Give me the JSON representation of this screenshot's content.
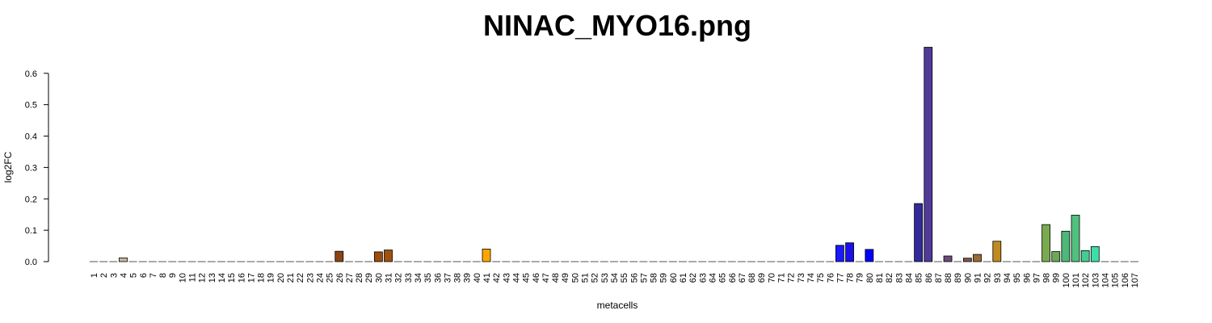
{
  "chart_data": {
    "type": "bar",
    "title": "NINAC_MYO16.png",
    "xlabel": "metacells",
    "ylabel": "log2FC",
    "ylim": [
      0,
      0.68
    ],
    "yticks": [
      "0.0",
      "0.1",
      "0.2",
      "0.3",
      "0.4",
      "0.5",
      "0.6"
    ],
    "grid": false,
    "categories": [
      "1",
      "2",
      "3",
      "4",
      "5",
      "6",
      "7",
      "8",
      "9",
      "10",
      "11",
      "12",
      "13",
      "14",
      "15",
      "16",
      "17",
      "18",
      "19",
      "20",
      "21",
      "22",
      "23",
      "24",
      "25",
      "26",
      "27",
      "28",
      "29",
      "30",
      "31",
      "32",
      "33",
      "34",
      "35",
      "36",
      "37",
      "38",
      "39",
      "40",
      "41",
      "42",
      "43",
      "44",
      "45",
      "46",
      "47",
      "48",
      "49",
      "50",
      "51",
      "52",
      "53",
      "54",
      "55",
      "56",
      "57",
      "58",
      "59",
      "60",
      "61",
      "62",
      "63",
      "64",
      "65",
      "66",
      "67",
      "68",
      "69",
      "70",
      "71",
      "72",
      "73",
      "74",
      "75",
      "76",
      "77",
      "78",
      "79",
      "80",
      "81",
      "82",
      "83",
      "84",
      "85",
      "86",
      "87",
      "88",
      "89",
      "90",
      "91",
      "92",
      "93",
      "94",
      "95",
      "96",
      "97",
      "98",
      "99",
      "100",
      "101",
      "102",
      "103",
      "104",
      "105",
      "106",
      "107"
    ],
    "values": [
      0,
      0,
      0,
      0.012,
      0,
      0,
      0,
      0,
      0,
      0,
      0,
      0,
      0,
      0,
      0,
      0,
      0,
      0,
      0,
      0,
      0,
      0,
      0,
      0,
      0,
      0.033,
      0,
      0,
      0,
      0.031,
      0.037,
      0,
      0,
      0,
      0,
      0,
      0,
      0,
      0,
      0,
      0.04,
      0,
      0,
      0,
      0,
      0,
      0,
      0,
      0,
      0,
      0,
      0,
      0,
      0,
      0,
      0,
      0,
      0,
      0,
      0,
      0,
      0,
      0,
      0,
      0,
      0,
      0,
      0,
      0,
      0,
      0,
      0,
      0,
      0,
      0,
      0,
      0.052,
      0.06,
      0,
      0.039,
      0,
      0,
      0,
      0,
      0.185,
      0.683,
      0,
      0.018,
      0,
      0.011,
      0.023,
      0,
      0.065,
      0,
      0,
      0,
      0,
      0.118,
      0.032,
      0.097,
      0.148,
      0.035,
      0.048,
      0,
      0,
      0,
      0
    ],
    "colors": [
      "#d3d3d3",
      "#d3d3d3",
      "#d3d3d3",
      "#c8b89a",
      "#d3d3d3",
      "#d3d3d3",
      "#d3d3d3",
      "#d3d3d3",
      "#d3d3d3",
      "#d3d3d3",
      "#d3d3d3",
      "#d3d3d3",
      "#d3d3d3",
      "#d3d3d3",
      "#d3d3d3",
      "#d3d3d3",
      "#d3d3d3",
      "#d3d3d3",
      "#d3d3d3",
      "#d3d3d3",
      "#d3d3d3",
      "#d3d3d3",
      "#d3d3d3",
      "#d3d3d3",
      "#d3d3d3",
      "#8b4513",
      "#d3d3d3",
      "#d3d3d3",
      "#d3d3d3",
      "#9c4e0c",
      "#a0520d",
      "#d3d3d3",
      "#d3d3d3",
      "#d3d3d3",
      "#d3d3d3",
      "#d3d3d3",
      "#d3d3d3",
      "#d3d3d3",
      "#d3d3d3",
      "#d3d3d3",
      "#ffa500",
      "#d3d3d3",
      "#d3d3d3",
      "#d3d3d3",
      "#d3d3d3",
      "#d3d3d3",
      "#d3d3d3",
      "#d3d3d3",
      "#d3d3d3",
      "#d3d3d3",
      "#d3d3d3",
      "#d3d3d3",
      "#d3d3d3",
      "#d3d3d3",
      "#d3d3d3",
      "#d3d3d3",
      "#d3d3d3",
      "#d3d3d3",
      "#d3d3d3",
      "#d3d3d3",
      "#d3d3d3",
      "#d3d3d3",
      "#d3d3d3",
      "#d3d3d3",
      "#d3d3d3",
      "#d3d3d3",
      "#d3d3d3",
      "#d3d3d3",
      "#d3d3d3",
      "#d3d3d3",
      "#d3d3d3",
      "#d3d3d3",
      "#d3d3d3",
      "#d3d3d3",
      "#d3d3d3",
      "#d3d3d3",
      "#1a1aff",
      "#1c10e8",
      "#d3d3d3",
      "#0000ff",
      "#d3d3d3",
      "#d3d3d3",
      "#d3d3d3",
      "#d3d3d3",
      "#332a9a",
      "#4f3b96",
      "#d3d3d3",
      "#6a4c7a",
      "#d3d3d3",
      "#7d5a4a",
      "#9a6a33",
      "#d3d3d3",
      "#c08a20",
      "#d3d3d3",
      "#d3d3d3",
      "#d3d3d3",
      "#d3d3d3",
      "#7aaa50",
      "#6aa858",
      "#4db877",
      "#52c07e",
      "#45cc90",
      "#40dcaa",
      "#d3d3d3",
      "#d3d3d3",
      "#d3d3d3",
      "#d3d3d3"
    ]
  }
}
